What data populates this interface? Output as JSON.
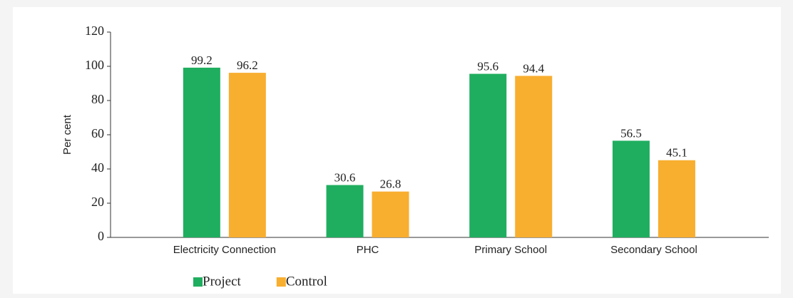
{
  "chart_data": {
    "type": "bar",
    "y_label": "Per cent",
    "categories": [
      "Electricity Connection",
      "PHC",
      "Primary School",
      "Secondary School"
    ],
    "series": [
      {
        "name": "Project",
        "color": "#1fae5f",
        "values": [
          99.2,
          30.6,
          95.6,
          56.5
        ]
      },
      {
        "name": "Control",
        "color": "#f8ae2f",
        "values": [
          96.2,
          26.8,
          94.4,
          45.1
        ]
      }
    ],
    "ylim": [
      0,
      120
    ],
    "yticks": [
      0,
      20,
      40,
      60,
      80,
      100,
      120
    ],
    "grid": false,
    "legend": "bottom"
  }
}
